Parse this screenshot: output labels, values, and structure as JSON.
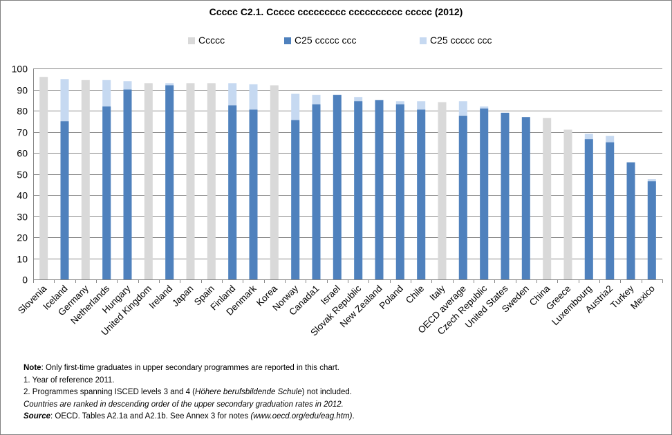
{
  "chart_data": {
    "type": "bar",
    "title": "Ccccc C2.1. Ccccc ccccccccc cccccccccc ccccc (2012)",
    "legend_position": "top",
    "ylim": [
      0,
      100
    ],
    "y_ticks": [
      0,
      10,
      20,
      30,
      40,
      50,
      60,
      70,
      80,
      90,
      100
    ],
    "grid": true,
    "categories": [
      "Slovenia",
      "Iceland",
      "Germany",
      "Netherlands",
      "Hungary",
      "United Kingdom",
      "Ireland",
      "Japan",
      "Spain",
      "Finland",
      "Denmark",
      "Korea",
      "Norway",
      "Canada1",
      "Israel",
      "Slovak Republic",
      "New Zealand",
      "Poland",
      "Chile",
      "Italy",
      "OECD average",
      "Czech Republic",
      "United States",
      "Sweden",
      "China",
      "Greece",
      "Luxembourg",
      "Austria2",
      "Turkey",
      "Mexico"
    ],
    "series": [
      {
        "name": "Ccccc",
        "color": "#d9d9d9",
        "values": [
          96,
          null,
          94.5,
          null,
          null,
          93,
          null,
          93,
          93,
          null,
          null,
          92,
          null,
          null,
          null,
          null,
          null,
          null,
          null,
          84,
          null,
          null,
          null,
          null,
          76.5,
          71,
          null,
          null,
          null,
          null
        ]
      },
      {
        "name": "C25 ccccc ccc",
        "color": "#4f81bd",
        "values": [
          null,
          75,
          null,
          82,
          90,
          null,
          92,
          null,
          null,
          82.5,
          80.5,
          null,
          75.5,
          83,
          87.5,
          84.5,
          85,
          83,
          80.5,
          null,
          77.5,
          81,
          79,
          77,
          null,
          null,
          66.5,
          65,
          55.5,
          46.5
        ]
      },
      {
        "name": "C25 ccccc ccc",
        "color": "#c6d9f1",
        "values": [
          null,
          95,
          null,
          94.5,
          94,
          null,
          93,
          null,
          null,
          93,
          92.5,
          null,
          88,
          87.5,
          null,
          86.5,
          null,
          84.5,
          84.5,
          null,
          84.5,
          82,
          null,
          null,
          null,
          null,
          69,
          68,
          null,
          47.5
        ]
      }
    ]
  },
  "notes": {
    "note_label": "Note",
    "note_text": ": Only first-time graduates in upper secondary programmes are reported in this chart.",
    "line1": "1. Year of reference 2011.",
    "line2_pre": "2. Programmes spanning ISCED levels 3 and 4 (",
    "line2_italic": "Höhere berufsbildende Schule",
    "line2_post": ") not included.",
    "line3": "Countries are ranked in descending order of the upper secondary graduation rates in 2012.",
    "source_label": "Source",
    "source_text": ": OECD. Tables A2.1a and A2.1b. See Annex 3 for notes ",
    "source_url": "(www.oecd.org/edu/eag.htm)",
    "source_end": "."
  }
}
